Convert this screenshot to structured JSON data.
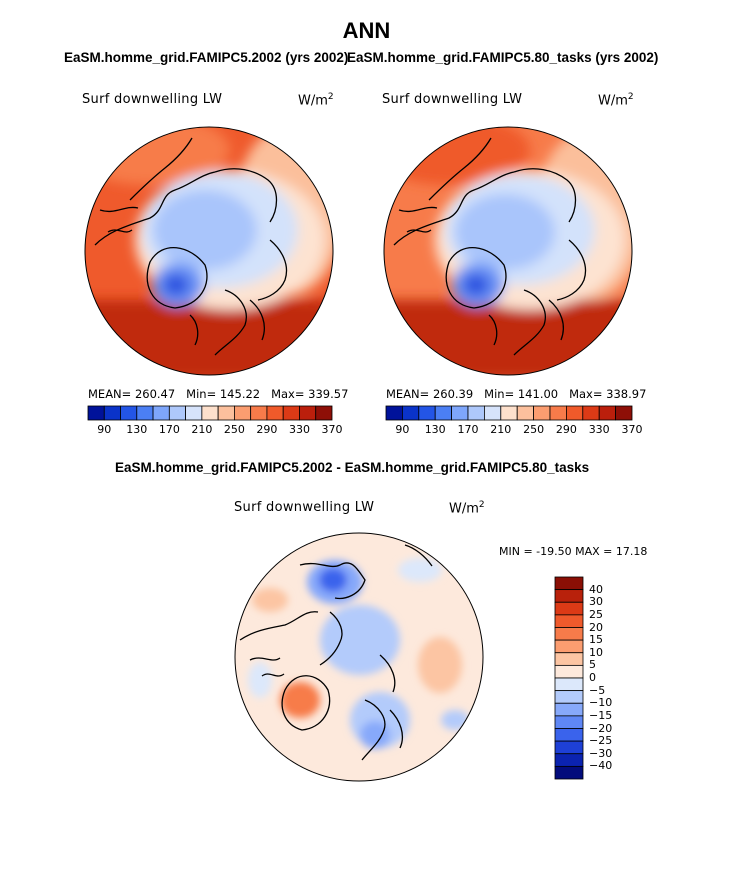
{
  "title": "ANN",
  "panels": [
    {
      "subtitle": "EaSM.homme_grid.FAMIPC5.2002 (yrs 2002)",
      "variable": "Surf downwelling LW",
      "units": "W/m",
      "units_sup": "2",
      "stats": {
        "mean": "MEAN= 260.47",
        "min": "Min= 145.22",
        "max": "Max= 339.57"
      }
    },
    {
      "subtitle": "EaSM.homme_grid.FAMIPC5.80_tasks (yrs 2002)",
      "variable": "Surf downwelling LW",
      "units": "W/m",
      "units_sup": "2",
      "stats": {
        "mean": "MEAN= 260.39",
        "min": "Min= 141.00",
        "max": "Max= 338.97"
      }
    }
  ],
  "top_colorbar": {
    "ticks": [
      "90",
      "130",
      "170",
      "210",
      "250",
      "290",
      "330",
      "370"
    ],
    "colors": [
      "#00129a",
      "#0a33c9",
      "#2355e6",
      "#4b7ff4",
      "#7ea6fb",
      "#aec8fb",
      "#d6e3fb",
      "#fde0cc",
      "#fcc09d",
      "#fb9d70",
      "#f77b4a",
      "#f05a2a",
      "#dc3a16",
      "#bb1f0c",
      "#8e0f07"
    ]
  },
  "diff_panel": {
    "subtitle": "EaSM.homme_grid.FAMIPC5.2002 - EaSM.homme_grid.FAMIPC5.80_tasks",
    "variable": "Surf downwelling LW",
    "units": "W/m",
    "units_sup": "2",
    "stats": "MIN = -19.50 MAX =  17.18"
  },
  "diff_colorbar": {
    "levels": [
      "40",
      "30",
      "25",
      "20",
      "15",
      "10",
      "5",
      "0",
      "-5",
      "-10",
      "-15",
      "-20",
      "-25",
      "-30",
      "-40"
    ],
    "colors": [
      "#8a0f05",
      "#b8210b",
      "#dc3a16",
      "#ef5a2c",
      "#f77b4a",
      "#fb9d70",
      "#fcc5a3",
      "#fde9dc",
      "#dce8fb",
      "#b3cbfb",
      "#87a9fa",
      "#5f87f5",
      "#3a63ec",
      "#1e40d6",
      "#0b23b0",
      "#030c7c"
    ]
  },
  "map_colors": {
    "cold_dark": "#2c52e0",
    "cold_mid": "#6b93f5",
    "cold_light": "#a9c5fb",
    "cold_pale": "#d3e2fb",
    "warm_pale": "#fde3d1",
    "warm_light": "#fbbf9b",
    "warm_mid": "#f88a5c",
    "warm_strong": "#ef5a2c",
    "warm_dark": "#d63a16",
    "warm_deep": "#c02a0e"
  }
}
